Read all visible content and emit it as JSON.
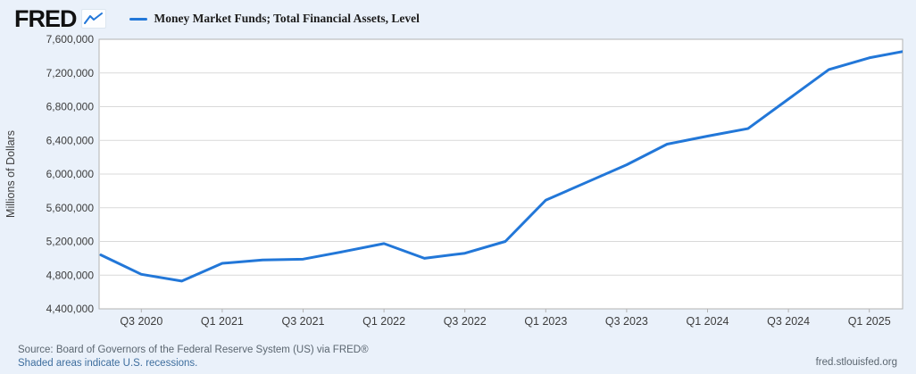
{
  "header": {
    "logo": "FRED"
  },
  "legend": {
    "label": "Money Market Funds; Total Financial Assets, Level"
  },
  "footer": {
    "source": "Source: Board of Governors of the Federal Reserve System (US) via FRED®",
    "recession_note": "Shaded areas indicate U.S. recessions.",
    "site": "fred.stlouisfed.org"
  },
  "icons": {
    "logo_chart_icon": "line-chart-icon"
  },
  "colors": {
    "page_bg": "#eaf1fa",
    "plot_bg": "#ffffff",
    "grid": "#d9d9d9",
    "frame": "#b3b3b3",
    "line": "#2277d8",
    "axis_text": "#3c3c3c",
    "footer_text": "#5b6670",
    "link": "#3e6e9e"
  },
  "chart_data": {
    "type": "line",
    "title": "Money Market Funds; Total Financial Assets, Level",
    "xlabel": "",
    "ylabel": "Millions of Dollars",
    "x_quarters": [
      "Q2 2020",
      "Q3 2020",
      "Q4 2020",
      "Q1 2021",
      "Q2 2021",
      "Q3 2021",
      "Q4 2021",
      "Q1 2022",
      "Q2 2022",
      "Q3 2022",
      "Q4 2022",
      "Q1 2023",
      "Q2 2023",
      "Q3 2023",
      "Q4 2023",
      "Q1 2024",
      "Q2 2024",
      "Q3 2024",
      "Q4 2024",
      "Q1 2025",
      "Q2 2025"
    ],
    "values": [
      5040000,
      4810000,
      4730000,
      4940000,
      4980000,
      4990000,
      5080000,
      5175000,
      5000000,
      5060000,
      5200000,
      5690000,
      5900000,
      6110000,
      6355000,
      6450000,
      6540000,
      6890000,
      7240000,
      7380000,
      7470000
    ],
    "ylim": [
      4400000,
      7600000
    ],
    "y_tick_step": 400000,
    "x_tick_labels": [
      "Q3 2020",
      "Q1 2021",
      "Q3 2021",
      "Q1 2022",
      "Q3 2022",
      "Q1 2023",
      "Q3 2023",
      "Q1 2024",
      "Q3 2024",
      "Q1 2025"
    ],
    "x_tick_indices": [
      1,
      3,
      5,
      7,
      9,
      11,
      13,
      15,
      17,
      19
    ],
    "grid": "horizontal-only",
    "legend_position": "top-left",
    "line_width": 3
  }
}
